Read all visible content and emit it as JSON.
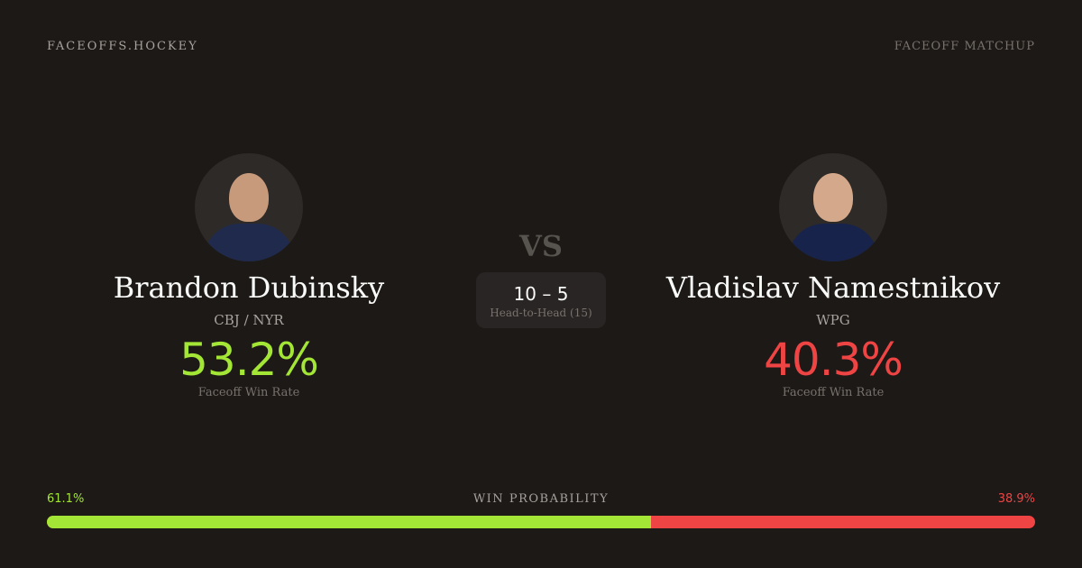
{
  "header": {
    "brand": "FACEOFFS.HOCKEY",
    "tag": "FACEOFF MATCHUP"
  },
  "colors": {
    "background": "#1c1917",
    "left_accent": "#a3e635",
    "right_accent": "#ef4444"
  },
  "left": {
    "name": "Brandon Dubinsky",
    "team": "CBJ / NYR",
    "win_rate": "53.2%",
    "win_rate_label": "Faceoff Win Rate",
    "jersey": "#1f2a4d"
  },
  "right": {
    "name": "Vladislav Namestnikov",
    "team": "WPG",
    "win_rate": "40.3%",
    "win_rate_label": "Faceoff Win Rate",
    "jersey": "#17234a"
  },
  "vs": "VS",
  "head_to_head": {
    "score": "10 – 5",
    "label": "Head-to-Head (15)"
  },
  "probability": {
    "label": "WIN PROBABILITY",
    "left": "61.1%",
    "right": "38.9%",
    "left_fraction": 0.611
  }
}
